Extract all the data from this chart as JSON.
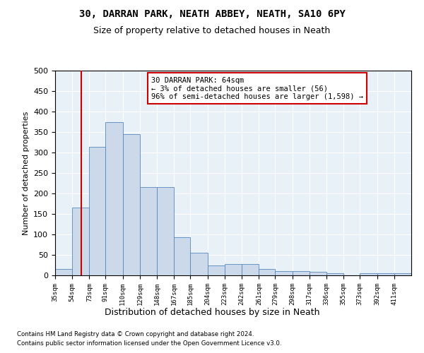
{
  "title1": "30, DARRAN PARK, NEATH ABBEY, NEATH, SA10 6PY",
  "title2": "Size of property relative to detached houses in Neath",
  "xlabel": "Distribution of detached houses by size in Neath",
  "ylabel": "Number of detached properties",
  "bar_color": "#ccd9ea",
  "bar_edge_color": "#5588bb",
  "vline_color": "#cc0000",
  "vline_x": 64,
  "bins": [
    35,
    54,
    73,
    91,
    110,
    129,
    148,
    167,
    185,
    204,
    223,
    242,
    261,
    279,
    298,
    317,
    336,
    355,
    373,
    392,
    411
  ],
  "bin_labels": [
    "35sqm",
    "54sqm",
    "73sqm",
    "91sqm",
    "110sqm",
    "129sqm",
    "148sqm",
    "167sqm",
    "185sqm",
    "204sqm",
    "223sqm",
    "242sqm",
    "261sqm",
    "279sqm",
    "298sqm",
    "317sqm",
    "336sqm",
    "355sqm",
    "373sqm",
    "392sqm",
    "411sqm"
  ],
  "values": [
    15,
    165,
    313,
    375,
    345,
    215,
    215,
    93,
    55,
    25,
    28,
    28,
    15,
    10,
    10,
    8,
    5,
    0,
    5,
    5,
    5
  ],
  "ylim": [
    0,
    500
  ],
  "yticks": [
    0,
    50,
    100,
    150,
    200,
    250,
    300,
    350,
    400,
    450,
    500
  ],
  "annotation_text": "30 DARRAN PARK: 64sqm\n← 3% of detached houses are smaller (56)\n96% of semi-detached houses are larger (1,598) →",
  "annotation_box_color": "#ffffff",
  "annotation_box_edge": "#cc0000",
  "footer1": "Contains HM Land Registry data © Crown copyright and database right 2024.",
  "footer2": "Contains public sector information licensed under the Open Government Licence v3.0.",
  "bg_color": "#e8f0f8",
  "grid_color": "#ffffff"
}
